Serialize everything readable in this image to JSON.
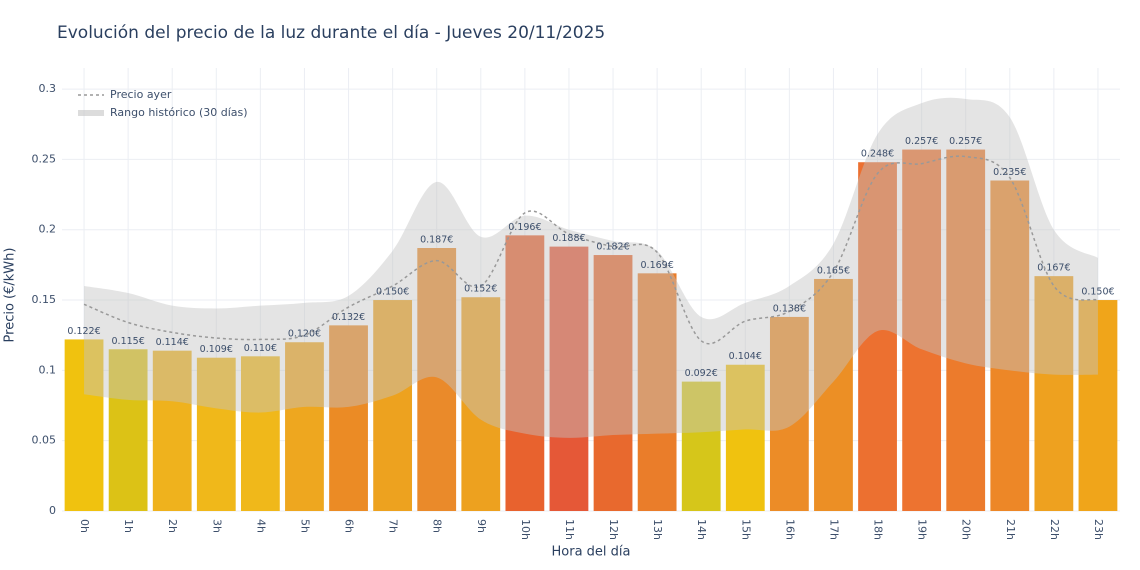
{
  "chart_data": {
    "type": "bar",
    "title": "Evolución del precio de la luz durante el día - Jueves 20/11/2025",
    "x_label": "Hora del día",
    "y_label": "Precio (€/kWh)",
    "categories": [
      "0h",
      "1h",
      "2h",
      "3h",
      "4h",
      "5h",
      "6h",
      "7h",
      "8h",
      "9h",
      "10h",
      "11h",
      "12h",
      "13h",
      "14h",
      "15h",
      "16h",
      "17h",
      "18h",
      "19h",
      "20h",
      "21h",
      "22h",
      "23h"
    ],
    "values": [
      0.122,
      0.115,
      0.114,
      0.109,
      0.11,
      0.12,
      0.132,
      0.15,
      0.187,
      0.152,
      0.196,
      0.188,
      0.182,
      0.169,
      0.092,
      0.104,
      0.138,
      0.165,
      0.248,
      0.257,
      0.257,
      0.235,
      0.167,
      0.15
    ],
    "value_labels": [
      "0.122€",
      "0.115€",
      "0.114€",
      "0.109€",
      "0.110€",
      "0.120€",
      "0.132€",
      "0.150€",
      "0.187€",
      "0.152€",
      "0.196€",
      "0.188€",
      "0.182€",
      "0.169€",
      "0.092€",
      "0.104€",
      "0.138€",
      "0.165€",
      "0.248€",
      "0.257€",
      "0.257€",
      "0.235€",
      "0.167€",
      "0.150€"
    ],
    "colors": [
      "#f0c20f",
      "#dcc216",
      "#efb21d",
      "#f0b81a",
      "#f0b81a",
      "#eea71f",
      "#eb8b25",
      "#eda21f",
      "#ea8a2a",
      "#eda11f",
      "#e8622e",
      "#e55837",
      "#e8692e",
      "#ea7d2a",
      "#d6c61a",
      "#f0c20f",
      "#ec8c27",
      "#ec8f25",
      "#ec7030",
      "#ed7330",
      "#ec7b2c",
      "#ed8727",
      "#eea11f",
      "#f0a51a"
    ],
    "overlays": [
      {
        "type": "line",
        "name": "Precio ayer",
        "color": "#999999",
        "values": [
          0.147,
          0.134,
          0.127,
          0.123,
          0.122,
          0.125,
          0.145,
          0.16,
          0.178,
          0.16,
          0.212,
          0.197,
          0.188,
          0.184,
          0.121,
          0.135,
          0.142,
          0.17,
          0.24,
          0.247,
          0.252,
          0.237,
          0.16,
          0.15
        ]
      },
      {
        "type": "band",
        "name": "Rango histórico (30 días)",
        "color": "#c4c4c4",
        "upper": [
          0.16,
          0.155,
          0.146,
          0.144,
          0.146,
          0.148,
          0.153,
          0.185,
          0.234,
          0.195,
          0.21,
          0.2,
          0.192,
          0.185,
          0.138,
          0.148,
          0.16,
          0.19,
          0.268,
          0.29,
          0.293,
          0.28,
          0.2,
          0.18
        ],
        "lower": [
          0.083,
          0.079,
          0.078,
          0.073,
          0.07,
          0.074,
          0.074,
          0.082,
          0.095,
          0.065,
          0.055,
          0.052,
          0.054,
          0.055,
          0.056,
          0.058,
          0.06,
          0.092,
          0.128,
          0.115,
          0.105,
          0.1,
          0.097,
          0.097
        ]
      }
    ],
    "ylim": [
      0,
      0.315
    ],
    "yticks": [
      0,
      0.05,
      0.1,
      0.15,
      0.2,
      0.25,
      0.3
    ],
    "grid": true,
    "legend": "top-left"
  }
}
